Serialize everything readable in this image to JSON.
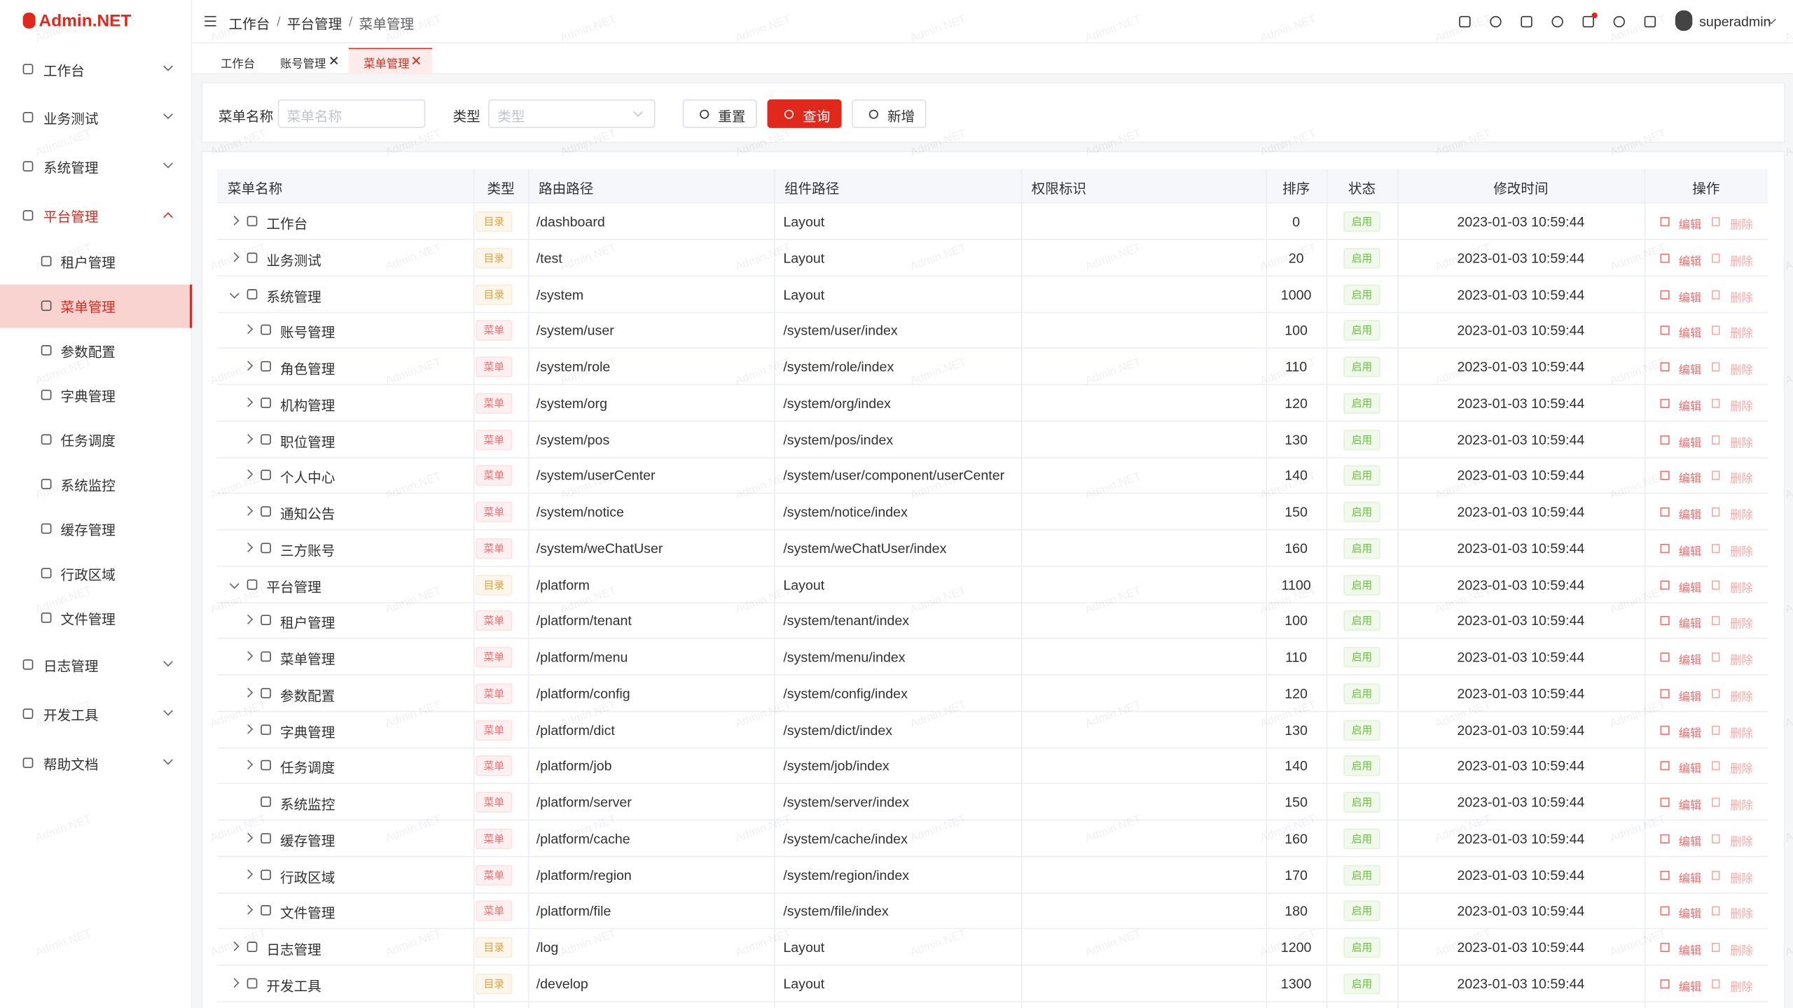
{
  "logo": "Admin.NET",
  "watermark": "Admin.NET",
  "sidebar": {
    "items": [
      "工作台",
      "业务测试",
      "系统管理",
      "平台管理"
    ],
    "children": [
      "租户管理",
      "菜单管理",
      "参数配置",
      "字典管理",
      "任务调度",
      "系统监控",
      "缓存管理",
      "行政区域",
      "文件管理"
    ],
    "after": [
      "日志管理",
      "开发工具",
      "帮助文档"
    ]
  },
  "header": {
    "breadcrumb": [
      "工作台",
      "平台管理",
      "菜单管理"
    ],
    "separator": "/",
    "user": "superadmin"
  },
  "tabs": [
    "工作台",
    "账号管理",
    "菜单管理"
  ],
  "search": {
    "name_label": "菜单名称",
    "name_placeholder": "菜单名称",
    "type_label": "类型",
    "type_placeholder": "类型",
    "reset": "重置",
    "query": "查询",
    "add": "新增"
  },
  "table": {
    "columns": [
      "菜单名称",
      "类型",
      "路由路径",
      "组件路径",
      "权限标识",
      "排序",
      "状态",
      "修改时间",
      "操作"
    ],
    "actions": {
      "edit": "编辑",
      "delete": "删除"
    },
    "rows": [
      [
        "工作台",
        "目录",
        "/dashboard",
        "Layout",
        0,
        "启用",
        "2023-01-03 10:59:44"
      ],
      [
        "业务测试",
        "目录",
        "/test",
        "Layout",
        20,
        "启用",
        "2023-01-03 10:59:44"
      ],
      [
        "系统管理",
        "目录",
        "/system",
        "Layout",
        1000,
        "启用",
        "2023-01-03 10:59:44"
      ],
      [
        "账号管理",
        "菜单",
        "/system/user",
        "/system/user/index",
        100,
        "启用",
        "2023-01-03 10:59:44"
      ],
      [
        "角色管理",
        "菜单",
        "/system/role",
        "/system/role/index",
        110,
        "启用",
        "2023-01-03 10:59:44"
      ],
      [
        "机构管理",
        "菜单",
        "/system/org",
        "/system/org/index",
        120,
        "启用",
        "2023-01-03 10:59:44"
      ],
      [
        "职位管理",
        "菜单",
        "/system/pos",
        "/system/pos/index",
        130,
        "启用",
        "2023-01-03 10:59:44"
      ],
      [
        "个人中心",
        "菜单",
        "/system/userCenter",
        "/system/user/component/userCenter",
        140,
        "启用",
        "2023-01-03 10:59:44"
      ],
      [
        "通知公告",
        "菜单",
        "/system/notice",
        "/system/notice/index",
        150,
        "启用",
        "2023-01-03 10:59:44"
      ],
      [
        "三方账号",
        "菜单",
        "/system/weChatUser",
        "/system/weChatUser/index",
        160,
        "启用",
        "2023-01-03 10:59:44"
      ],
      [
        "平台管理",
        "目录",
        "/platform",
        "Layout",
        1100,
        "启用",
        "2023-01-03 10:59:44"
      ],
      [
        "租户管理",
        "菜单",
        "/platform/tenant",
        "/system/tenant/index",
        100,
        "启用",
        "2023-01-03 10:59:44"
      ],
      [
        "菜单管理",
        "菜单",
        "/platform/menu",
        "/system/menu/index",
        110,
        "启用",
        "2023-01-03 10:59:44"
      ],
      [
        "参数配置",
        "菜单",
        "/platform/config",
        "/system/config/index",
        120,
        "启用",
        "2023-01-03 10:59:44"
      ],
      [
        "字典管理",
        "菜单",
        "/platform/dict",
        "/system/dict/index",
        130,
        "启用",
        "2023-01-03 10:59:44"
      ],
      [
        "任务调度",
        "菜单",
        "/platform/job",
        "/system/job/index",
        140,
        "启用",
        "2023-01-03 10:59:44"
      ],
      [
        "系统监控",
        "菜单",
        "/platform/server",
        "/system/server/index",
        150,
        "启用",
        "2023-01-03 10:59:44"
      ],
      [
        "缓存管理",
        "菜单",
        "/platform/cache",
        "/system/cache/index",
        160,
        "启用",
        "2023-01-03 10:59:44"
      ],
      [
        "行政区域",
        "菜单",
        "/platform/region",
        "/system/region/index",
        170,
        "启用",
        "2023-01-03 10:59:44"
      ],
      [
        "文件管理",
        "菜单",
        "/platform/file",
        "/system/file/index",
        180,
        "启用",
        "2023-01-03 10:59:44"
      ],
      [
        "日志管理",
        "目录",
        "/log",
        "Layout",
        1200,
        "启用",
        "2023-01-03 10:59:44"
      ],
      [
        "开发工具",
        "目录",
        "/develop",
        "Layout",
        1300,
        "启用",
        "2023-01-03 10:59:44"
      ]
    ]
  }
}
